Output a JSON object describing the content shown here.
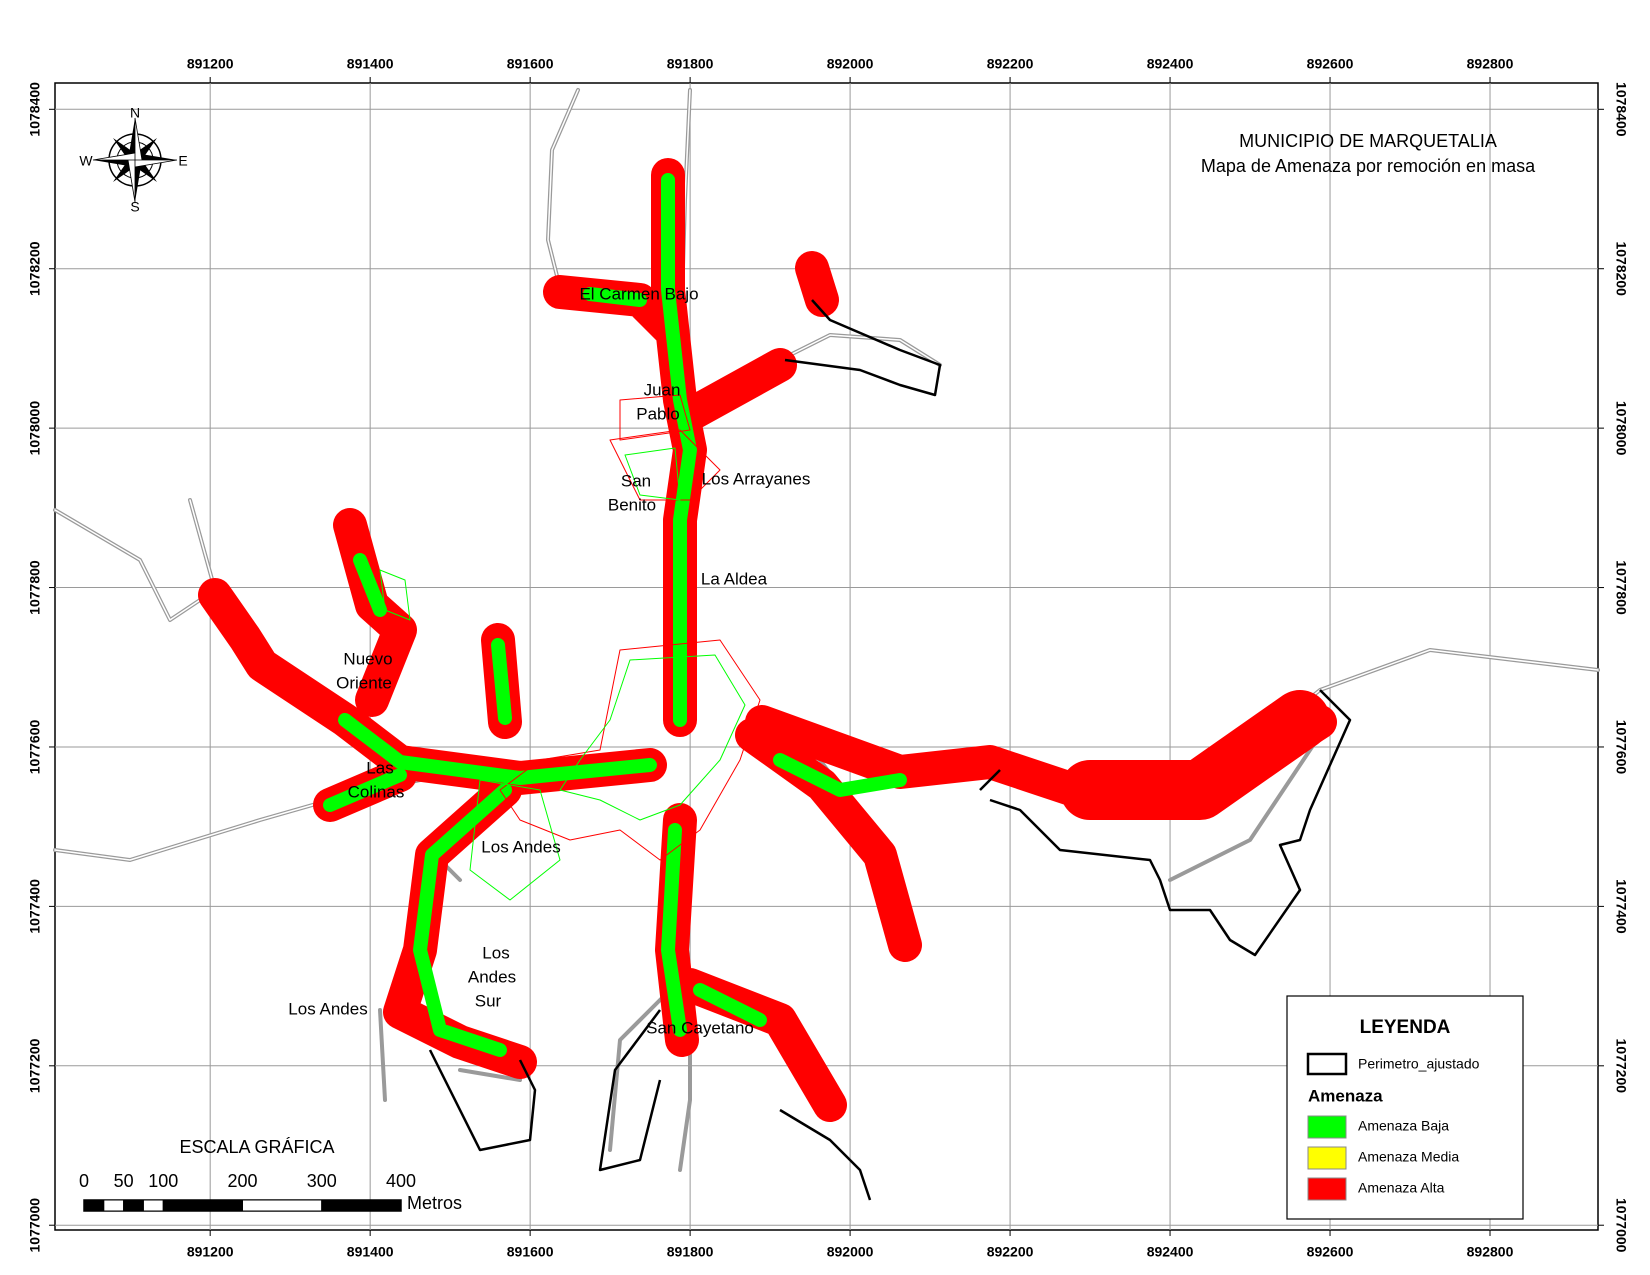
{
  "title": "MUNICIPIO DE MARQUETALIA",
  "subtitle": "Mapa de Amenaza por remoción en masa",
  "compass": {
    "n": "N",
    "e": "E",
    "s": "S",
    "w": "W"
  },
  "grid": {
    "xlim": [
      891006,
      892935
    ],
    "xticks": [
      891200,
      891400,
      891600,
      891800,
      892000,
      892200,
      892400,
      892600,
      892800
    ],
    "ylim": [
      1076994,
      1078433
    ],
    "yticks": [
      1077000,
      1077200,
      1077400,
      1077600,
      1077800,
      1078000,
      1078200,
      1078400
    ]
  },
  "places": [
    {
      "lines": [
        "El Carmen Bajo"
      ]
    },
    {
      "lines": [
        "Juan",
        "Pablo"
      ]
    },
    {
      "lines": [
        "San",
        "Benito"
      ]
    },
    {
      "lines": [
        "Los Arrayanes"
      ]
    },
    {
      "lines": [
        "La Aldea"
      ]
    },
    {
      "lines": [
        "Nuevo",
        "Oriente"
      ]
    },
    {
      "lines": [
        "Las",
        "Colinas"
      ]
    },
    {
      "lines": [
        "Los Andes"
      ]
    },
    {
      "lines": [
        "Los",
        "Andes",
        "Sur"
      ]
    },
    {
      "lines": [
        "Los Andes"
      ]
    },
    {
      "lines": [
        "San Cayetano"
      ]
    }
  ],
  "scale": {
    "title": "ESCALA GRÁFICA",
    "ticks": [
      0,
      50,
      100,
      200,
      300,
      400
    ],
    "unit": "Metros"
  },
  "legend": {
    "title": "LEYENDA",
    "perimeter": "Perimetro_ajustado",
    "group": "Amenaza",
    "classes": [
      {
        "name": "Amenaza Baja",
        "color": "#00ff00"
      },
      {
        "name": "Amenaza Media",
        "color": "#ffff00"
      },
      {
        "name": "Amenaza Alta",
        "color": "#ff0000"
      }
    ]
  }
}
